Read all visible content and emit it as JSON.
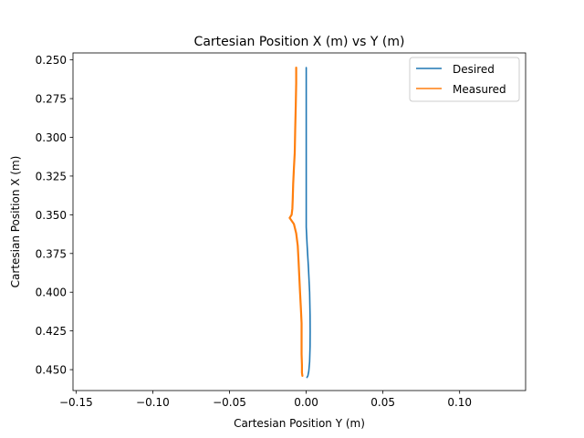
{
  "chart_data": {
    "type": "line",
    "title": "Cartesian Position X (m) vs Y (m)",
    "xlabel": "Cartesian Position Y (m)",
    "ylabel": "Cartesian Position X (m)",
    "xlim": [
      -0.152,
      0.143
    ],
    "ylim": [
      0.4635,
      0.2455
    ],
    "y_inverted": true,
    "grid": false,
    "legend_position": "top-right",
    "xticks": [
      -0.15,
      -0.1,
      -0.05,
      0.0,
      0.05,
      0.1
    ],
    "xtick_labels": [
      "−0.15",
      "−0.10",
      "−0.05",
      "0.00",
      "0.05",
      "0.10"
    ],
    "yticks": [
      0.25,
      0.275,
      0.3,
      0.325,
      0.35,
      0.375,
      0.4,
      0.425,
      0.45
    ],
    "ytick_labels": [
      "0.250",
      "0.275",
      "0.300",
      "0.325",
      "0.350",
      "0.375",
      "0.400",
      "0.425",
      "0.450"
    ],
    "series": [
      {
        "name": "Desired",
        "color": "#1f77b4",
        "x": [
          0.0,
          0.0,
          0.0,
          0.0,
          0.0,
          0.0,
          0.0006,
          0.0015,
          0.0022,
          0.0025,
          0.0026,
          0.0025,
          0.0022,
          0.0017,
          0.0011,
          0.0005
        ],
        "y": [
          0.255,
          0.28,
          0.3,
          0.325,
          0.345,
          0.358,
          0.37,
          0.385,
          0.4,
          0.415,
          0.425,
          0.435,
          0.445,
          0.451,
          0.454,
          0.455
        ]
      },
      {
        "name": "Measured",
        "color": "#ff7f0e",
        "x": [
          -0.0065,
          -0.0065,
          -0.0068,
          -0.0072,
          -0.0075,
          -0.008,
          -0.0085,
          -0.0088,
          -0.009,
          -0.0095,
          -0.0108,
          -0.008,
          -0.0065,
          -0.0055,
          -0.005,
          -0.0045,
          -0.004,
          -0.0035,
          -0.003,
          -0.003,
          -0.003,
          -0.0028,
          -0.0028,
          -0.0025
        ],
        "y": [
          0.255,
          0.265,
          0.28,
          0.295,
          0.31,
          0.32,
          0.33,
          0.34,
          0.346,
          0.35,
          0.352,
          0.356,
          0.362,
          0.37,
          0.38,
          0.39,
          0.4,
          0.41,
          0.42,
          0.43,
          0.44,
          0.447,
          0.452,
          0.454
        ]
      }
    ]
  }
}
